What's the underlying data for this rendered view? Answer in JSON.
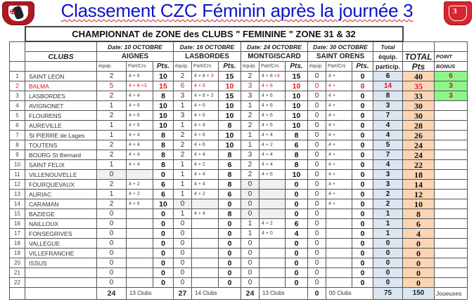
{
  "page": {
    "title": "Classement CZC Féminin après la journée 3",
    "logo_left": "club-crest-left",
    "logo_right": "club-crest-right"
  },
  "table": {
    "championship_title": "CHAMPIONNAT de ZONE des CLUBS  \" FEMININE \"   ZONE  31 & 32",
    "clubs_header": "CLUBS",
    "rounds": [
      {
        "date": "Date: 10  OCTOBRE",
        "venue": "AIGNES"
      },
      {
        "date": "Date: 16 OCTOBRE",
        "venue": "LASBORDES"
      },
      {
        "date": "Date:  24 OCTOBRE",
        "venue": "MONTGISCARD"
      },
      {
        "date": "Date: 30  OCTOBRE",
        "venue": "SAINT ORENS"
      }
    ],
    "sub_headers": {
      "equip": "équip.",
      "part": "Part/Crs",
      "pts": "Pts."
    },
    "total_header": {
      "line1": "Total",
      "line2": "équip.",
      "line3": "particip."
    },
    "total_pts_header": {
      "line1": "TOTAL",
      "line2": "Pts"
    },
    "bonus_header": {
      "line1": "POINT",
      "line2": "BONUS"
    },
    "rows": [
      {
        "rank": "1",
        "club": "SAINT LEON",
        "r": [
          [
            "2",
            "4 +  6",
            "",
            "10"
          ],
          [
            "2",
            "4 + 8 + ",
            "3",
            "15"
          ],
          [
            "2",
            "4 + 8  ",
            "+3",
            "15"
          ],
          [
            "0",
            "4 +",
            "",
            "0"
          ]
        ],
        "total_eq": "6",
        "total_pts": "40",
        "bonus": "6",
        "highlight": false
      },
      {
        "rank": "2",
        "club": "BALMA",
        "r": [
          [
            "5",
            "4 + 8 +3",
            "",
            "15"
          ],
          [
            "6",
            "4 +  6",
            "",
            "10"
          ],
          [
            "3",
            "4 +  6",
            "",
            "10"
          ],
          [
            "0",
            "4 +",
            "",
            "0"
          ]
        ],
        "total_eq": "14",
        "total_pts": "35",
        "bonus": "3",
        "highlight": true
      },
      {
        "rank": "3",
        "club": "LASBORDES",
        "r": [
          [
            "2",
            "4 +  4",
            "",
            "8"
          ],
          [
            "3",
            "4 + 8 + ",
            "3",
            "15"
          ],
          [
            "3",
            "4 +  6",
            "",
            "10"
          ],
          [
            "0",
            "4 +",
            "",
            "0"
          ]
        ],
        "total_eq": "8",
        "total_pts": "33",
        "bonus": "3",
        "highlight": false
      },
      {
        "rank": "4",
        "club": "AVIGNONET",
        "r": [
          [
            "1",
            "4 +  6",
            "",
            "10"
          ],
          [
            "1",
            "4 +  6",
            "",
            "10"
          ],
          [
            "1",
            "4 +  6",
            "",
            "10"
          ],
          [
            "0",
            "4 +",
            "",
            "0"
          ]
        ],
        "total_eq": "3",
        "total_pts": "30",
        "bonus": "",
        "highlight": false
      },
      {
        "rank": "5",
        "club": "FLOURENS",
        "r": [
          [
            "2",
            "4 +  6",
            "",
            "10"
          ],
          [
            "3",
            "4 +  6",
            "",
            "10"
          ],
          [
            "2",
            "4 +  6",
            "",
            "10"
          ],
          [
            "0",
            "4 +",
            "",
            "0"
          ]
        ],
        "total_eq": "7",
        "total_pts": "30",
        "bonus": "",
        "highlight": false
      },
      {
        "rank": "6",
        "club": "AUREVILLE",
        "r": [
          [
            "1",
            "4 +  6",
            "",
            "10"
          ],
          [
            "1",
            "4 +  4",
            "",
            "8"
          ],
          [
            "2",
            "4 +  6",
            "",
            "10"
          ],
          [
            "0",
            "4 +",
            "",
            "0"
          ]
        ],
        "total_eq": "4",
        "total_pts": "28",
        "bonus": "",
        "highlight": false
      },
      {
        "rank": "7",
        "club": "St PIERRE de Lages",
        "r": [
          [
            "1",
            "4 +  4",
            "",
            "8"
          ],
          [
            "2",
            "4 +  6",
            "",
            "10"
          ],
          [
            "1",
            "4 +  4",
            "",
            "8"
          ],
          [
            "0",
            "4 +",
            "",
            "0"
          ]
        ],
        "total_eq": "4",
        "total_pts": "26",
        "bonus": "",
        "highlight": false
      },
      {
        "rank": "8",
        "club": "TOUTENS",
        "r": [
          [
            "2",
            "4 +  4",
            "",
            "8"
          ],
          [
            "2",
            "4 +  6",
            "",
            "10"
          ],
          [
            "1",
            "4 +  2",
            "",
            "6"
          ],
          [
            "0",
            "4 +",
            "",
            "0"
          ]
        ],
        "total_eq": "5",
        "total_pts": "24",
        "bonus": "",
        "highlight": false
      },
      {
        "rank": "9",
        "club": "BOURG  St  Bernard",
        "r": [
          [
            "2",
            "4 +  4",
            "",
            "8"
          ],
          [
            "2",
            "4 +  4",
            "",
            "8"
          ],
          [
            "3",
            "4 +  4",
            "",
            "8"
          ],
          [
            "0",
            "4 +",
            "",
            "0"
          ]
        ],
        "total_eq": "7",
        "total_pts": "24",
        "bonus": "",
        "highlight": false
      },
      {
        "rank": "10",
        "club": "SAINT  FELIX",
        "r": [
          [
            "1",
            "4 +  4",
            "",
            "8"
          ],
          [
            "1",
            "4 +  2",
            "",
            "6"
          ],
          [
            "2",
            "4 +  4",
            "",
            "8"
          ],
          [
            "0",
            "4 +",
            "",
            "0"
          ]
        ],
        "total_eq": "4",
        "total_pts": "22",
        "bonus": "",
        "highlight": false
      },
      {
        "rank": "11",
        "club": "VILLENOUVELLE",
        "r": [
          [
            "0",
            "",
            "",
            "0"
          ],
          [
            "1",
            "4 +  4",
            "",
            "8"
          ],
          [
            "2",
            "4 +  6",
            "",
            "10"
          ],
          [
            "0",
            "4 +",
            "",
            "0"
          ]
        ],
        "total_eq": "3",
        "total_pts": "18",
        "bonus": "",
        "highlight": false,
        "grey": [
          0
        ]
      },
      {
        "rank": "12",
        "club": "FOURQUEVAUX",
        "r": [
          [
            "2",
            "4 +  2",
            "",
            "6"
          ],
          [
            "1",
            "4 +  4",
            "",
            "8"
          ],
          [
            "0",
            "",
            "",
            "0"
          ],
          [
            "0",
            "4 +",
            "",
            "0"
          ]
        ],
        "total_eq": "3",
        "total_pts": "14",
        "bonus": "",
        "highlight": false,
        "grey": [
          2
        ]
      },
      {
        "rank": "13",
        "club": "AURIAC",
        "r": [
          [
            "1",
            "4 +  2",
            "",
            "6"
          ],
          [
            "1",
            "4 +  2",
            "",
            "6"
          ],
          [
            "0",
            "",
            "",
            "0"
          ],
          [
            "0",
            "4 +",
            "",
            "0"
          ]
        ],
        "total_eq": "2",
        "total_pts": "12",
        "bonus": "",
        "highlight": false,
        "grey": [
          2
        ]
      },
      {
        "rank": "14",
        "club": "CARAMAN",
        "r": [
          [
            "2",
            "4 +  6",
            "",
            "10"
          ],
          [
            "0",
            "",
            "",
            "0"
          ],
          [
            "0",
            "",
            "",
            "0"
          ],
          [
            "0",
            "4 +",
            "",
            "0"
          ]
        ],
        "total_eq": "2",
        "total_pts": "10",
        "bonus": "",
        "highlight": false,
        "grey": [
          1,
          2
        ]
      },
      {
        "rank": "15",
        "club": "BAZIEGE",
        "r": [
          [
            "0",
            "",
            "",
            "0"
          ],
          [
            "1",
            "4 +  4",
            "",
            "8"
          ],
          [
            "0",
            "",
            "",
            "0"
          ],
          [
            "0",
            "",
            "",
            "0"
          ]
        ],
        "total_eq": "1",
        "total_pts": "8",
        "bonus": "",
        "highlight": false,
        "grey": [
          2
        ]
      },
      {
        "rank": "16",
        "club": "NAILLOUX",
        "r": [
          [
            "0",
            "",
            "",
            "0"
          ],
          [
            "0",
            "",
            "",
            "0"
          ],
          [
            "1",
            "4 +  2",
            "",
            "6"
          ],
          [
            "0",
            "",
            "",
            "0"
          ]
        ],
        "total_eq": "1",
        "total_pts": "6",
        "bonus": "",
        "highlight": false
      },
      {
        "rank": "17",
        "club": "FONSEGRIVES",
        "r": [
          [
            "0",
            "",
            "",
            "0"
          ],
          [
            "0",
            "",
            "",
            "0"
          ],
          [
            "1",
            "4 +  0",
            "",
            "4"
          ],
          [
            "0",
            "",
            "",
            "0"
          ]
        ],
        "total_eq": "1",
        "total_pts": "4",
        "bonus": "",
        "highlight": false
      },
      {
        "rank": "18",
        "club": "VALLEGUE",
        "r": [
          [
            "0",
            "",
            "",
            "0"
          ],
          [
            "0",
            "",
            "",
            "0"
          ],
          [
            "0",
            "",
            "",
            "0"
          ],
          [
            "0",
            "",
            "",
            "0"
          ]
        ],
        "total_eq": "0",
        "total_pts": "0",
        "bonus": "",
        "highlight": false
      },
      {
        "rank": "19",
        "club": "VILLEFRANCHE",
        "r": [
          [
            "0",
            "",
            "",
            "0"
          ],
          [
            "0",
            "",
            "",
            "0"
          ],
          [
            "0",
            "",
            "",
            "0"
          ],
          [
            "0",
            "",
            "",
            "0"
          ]
        ],
        "total_eq": "0",
        "total_pts": "0",
        "bonus": "",
        "highlight": false
      },
      {
        "rank": "20",
        "club": "ISSUS",
        "r": [
          [
            "0",
            "",
            "",
            "0"
          ],
          [
            "0",
            "",
            "",
            "0"
          ],
          [
            "0",
            "",
            "",
            "0"
          ],
          [
            "0",
            "",
            "",
            "0"
          ]
        ],
        "total_eq": "0",
        "total_pts": "0",
        "bonus": "",
        "highlight": false
      },
      {
        "rank": "21",
        "club": "",
        "r": [
          [
            "0",
            "",
            "",
            "0"
          ],
          [
            "0",
            "",
            "",
            "0"
          ],
          [
            "0",
            "",
            "",
            "0"
          ],
          [
            "0",
            "",
            "",
            "0"
          ]
        ],
        "total_eq": "0",
        "total_pts": "0",
        "bonus": "",
        "highlight": false
      },
      {
        "rank": "22",
        "club": "",
        "r": [
          [
            "0",
            "",
            "",
            "0"
          ],
          [
            "0",
            "",
            "",
            "0"
          ],
          [
            "0",
            "",
            "",
            "0"
          ],
          [
            "0",
            "",
            "",
            "0"
          ]
        ],
        "total_eq": "0",
        "total_pts": "0",
        "bonus": "",
        "highlight": false
      }
    ],
    "footer": {
      "rounds": [
        {
          "sum": "24",
          "clubs": "13  Clubs"
        },
        {
          "sum": "27",
          "clubs": "14  Clubs"
        },
        {
          "sum": "24",
          "clubs": "13  Clubs"
        },
        {
          "sum": "0",
          "clubs": "00  Clubs"
        }
      ],
      "total_eq": "75",
      "total_pts": "150",
      "joueuses": "Joueuses"
    }
  },
  "colors": {
    "title": "#0b15c9",
    "highlight_red": "#e0151c",
    "total_equip_bg": "#dce6f1",
    "total_pts_bg": "#fcd5b4",
    "bonus_bg": "#8ef58a"
  }
}
